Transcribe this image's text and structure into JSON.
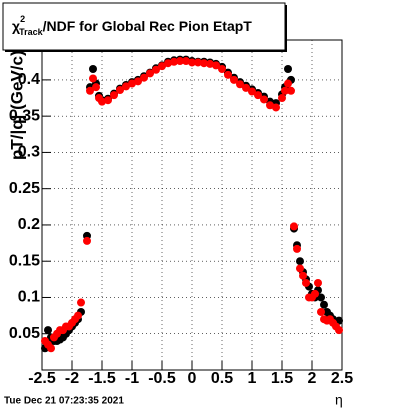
{
  "chart_data": {
    "type": "scatter",
    "title": {
      "symbol": "χ",
      "sup": "2",
      "sub": "Track",
      "text": "/NDF for Global Rec Pion EtapT"
    },
    "y_label": "pT/|q| (GeV/c)",
    "x_label": "η",
    "footer": "Tue Dec 21 07:23:35 2021",
    "x": [
      -2.45,
      -2.4,
      -2.35,
      -2.3,
      -2.25,
      -2.2,
      -2.15,
      -2.1,
      -2.05,
      -2.0,
      -1.95,
      -1.9,
      -1.85,
      -1.75,
      -1.7,
      -1.65,
      -1.6,
      -1.55,
      -1.5,
      -1.4,
      -1.3,
      -1.2,
      -1.1,
      -1.0,
      -0.9,
      -0.8,
      -0.7,
      -0.6,
      -0.5,
      -0.4,
      -0.3,
      -0.2,
      -0.1,
      0,
      0.1,
      0.2,
      0.3,
      0.4,
      0.5,
      0.6,
      0.7,
      0.8,
      0.9,
      1.0,
      1.1,
      1.2,
      1.3,
      1.4,
      1.5,
      1.55,
      1.6,
      1.65,
      1.7,
      1.75,
      1.8,
      1.85,
      1.9,
      1.95,
      2.0,
      2.05,
      2.1,
      2.15,
      2.2,
      2.25,
      2.3,
      2.35,
      2.4,
      2.45
    ],
    "series": [
      {
        "name": "black",
        "color": "#000000",
        "values": [
          0.03,
          0.055,
          0.045,
          0.04,
          0.04,
          0.042,
          0.045,
          0.05,
          0.055,
          0.06,
          0.065,
          0.07,
          0.08,
          0.185,
          0.39,
          0.415,
          0.395,
          0.378,
          0.372,
          0.374,
          0.381,
          0.388,
          0.393,
          0.397,
          0.4,
          0.405,
          0.41,
          0.416,
          0.42,
          0.425,
          0.427,
          0.428,
          0.428,
          0.426,
          0.425,
          0.425,
          0.424,
          0.422,
          0.418,
          0.41,
          0.403,
          0.397,
          0.392,
          0.387,
          0.382,
          0.377,
          0.37,
          0.368,
          0.38,
          0.39,
          0.415,
          0.4,
          0.195,
          0.172,
          0.15,
          0.135,
          0.125,
          0.115,
          0.105,
          0.1,
          0.11,
          0.1,
          0.09,
          0.08,
          0.075,
          0.07,
          0.065,
          0.068
        ]
      },
      {
        "name": "red",
        "color": "#ff0000",
        "values": [
          0.04,
          0.035,
          0.03,
          0.045,
          0.05,
          0.055,
          0.055,
          0.06,
          0.06,
          0.065,
          0.07,
          0.075,
          0.093,
          0.178,
          0.385,
          0.402,
          0.39,
          0.375,
          0.37,
          0.372,
          0.379,
          0.386,
          0.391,
          0.395,
          0.398,
          0.403,
          0.409,
          0.414,
          0.419,
          0.423,
          0.425,
          0.426,
          0.426,
          0.424,
          0.424,
          0.423,
          0.422,
          0.42,
          0.415,
          0.407,
          0.4,
          0.394,
          0.389,
          0.384,
          0.379,
          0.373,
          0.365,
          0.362,
          0.375,
          0.385,
          0.395,
          0.385,
          0.198,
          0.167,
          0.14,
          0.13,
          0.12,
          0.1,
          0.1,
          0.105,
          0.12,
          0.08,
          0.07,
          0.068,
          0.07,
          0.065,
          0.06,
          0.055
        ]
      }
    ],
    "xlim": [
      -2.5,
      2.5
    ],
    "ylim": [
      0,
      0.455
    ],
    "xticks": [
      -2.5,
      -2,
      -1.5,
      -1,
      -0.5,
      0,
      0.5,
      1,
      1.5,
      2,
      2.5
    ],
    "yticks": [
      0.05,
      0.1,
      0.15,
      0.2,
      0.25,
      0.3,
      0.35,
      0.4
    ],
    "grid": true
  }
}
